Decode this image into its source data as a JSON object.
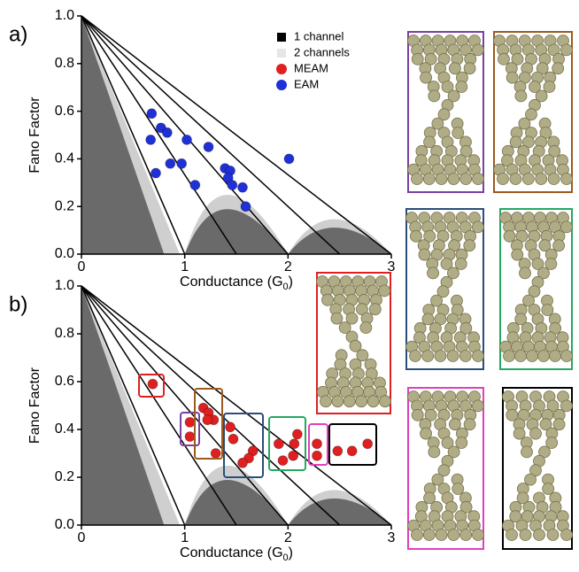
{
  "chart_data": [
    {
      "type": "scatter",
      "panel_label": "a)",
      "ylabel": "Fano Factor",
      "xlabel": [
        "Conductance (G",
        "0",
        ")"
      ],
      "xlim": [
        0,
        3
      ],
      "xticks": [
        0,
        1,
        2,
        3
      ],
      "ylim": [
        0,
        1
      ],
      "yticks": [
        {
          "value": 0,
          "label": "0.0"
        },
        {
          "value": 0.2,
          "label": "0.2"
        },
        {
          "value": 0.4,
          "label": "0.4"
        },
        {
          "value": 0.6,
          "label": "0.6"
        },
        {
          "value": 0.8,
          "label": "0.8"
        },
        {
          "value": 1,
          "label": "1.0"
        }
      ],
      "regions": [
        {
          "name": "1 channel",
          "color": "#000000"
        },
        {
          "name": "2 channels",
          "color": "#e6e6e6"
        }
      ],
      "series": [
        {
          "name": "MEAM",
          "color": "#e02020",
          "x": [],
          "values": []
        },
        {
          "name": "EAM",
          "color": "#2030d8",
          "x": [
            0.68,
            0.67,
            0.77,
            0.83,
            1.02,
            1.23,
            0.72,
            0.86,
            0.97,
            1.1,
            1.39,
            1.44,
            1.42,
            1.46,
            1.56,
            1.59,
            2.01
          ],
          "values": [
            0.59,
            0.48,
            0.53,
            0.51,
            0.48,
            0.45,
            0.34,
            0.38,
            0.38,
            0.29,
            0.36,
            0.35,
            0.32,
            0.29,
            0.28,
            0.2,
            0.4
          ]
        }
      ]
    },
    {
      "type": "scatter",
      "panel_label": "b)",
      "ylabel": "Fano Factor",
      "xlabel": [
        "Conductance (G",
        "0",
        ")"
      ],
      "xlim": [
        0,
        3
      ],
      "xticks": [
        0,
        1,
        2,
        3
      ],
      "ylim": [
        0,
        1
      ],
      "yticks": [
        {
          "value": 0,
          "label": "0.0"
        },
        {
          "value": 0.2,
          "label": "0.2"
        },
        {
          "value": 0.4,
          "label": "0.4"
        },
        {
          "value": 0.6,
          "label": "0.6"
        },
        {
          "value": 0.8,
          "label": "0.8"
        },
        {
          "value": 1,
          "label": "1.0"
        }
      ],
      "series": [
        {
          "name": "MEAM",
          "color": "#e02020",
          "x": [
            0.69,
            1.18,
            1.23,
            1.28,
            1.22,
            1.05,
            1.05,
            1.44,
            1.47,
            1.3,
            1.66,
            1.62,
            1.56,
            1.91,
            2.09,
            2.06,
            2.05,
            1.95,
            2.28,
            2.28,
            2.48,
            2.62,
            2.77
          ],
          "values": [
            0.59,
            0.49,
            0.47,
            0.44,
            0.44,
            0.43,
            0.37,
            0.41,
            0.36,
            0.3,
            0.31,
            0.28,
            0.26,
            0.34,
            0.38,
            0.34,
            0.29,
            0.27,
            0.34,
            0.29,
            0.31,
            0.31,
            0.34
          ]
        }
      ]
    }
  ]
}
